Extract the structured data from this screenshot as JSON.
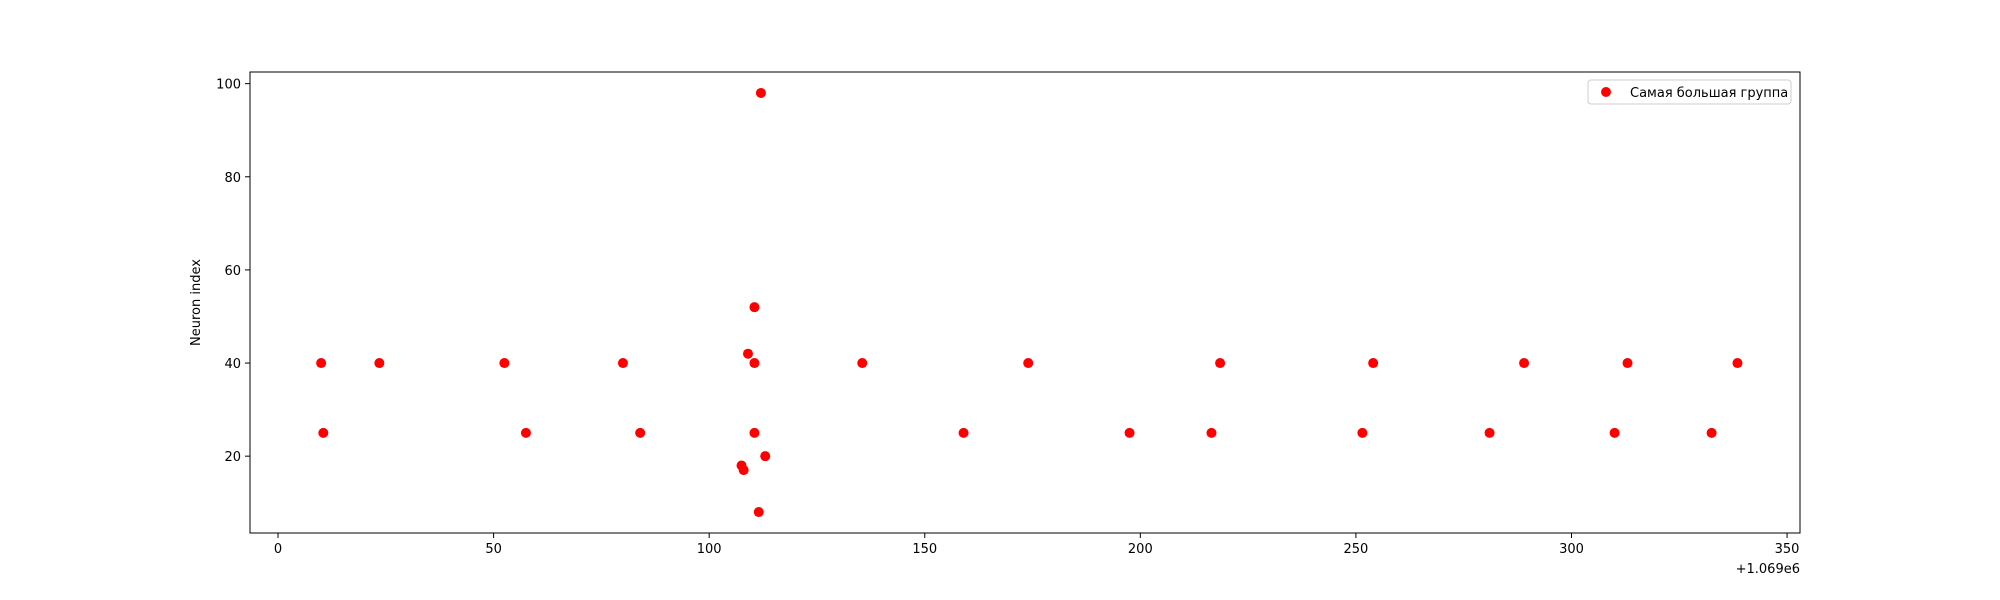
{
  "chart_data": {
    "type": "scatter",
    "title": "",
    "xlabel": "",
    "ylabel": "Neuron index",
    "x_offset_label": "+1.069e6",
    "xlim": [
      -6.5,
      353
    ],
    "ylim": [
      3.5,
      102.5
    ],
    "x_ticks": [
      0,
      50,
      100,
      150,
      200,
      250,
      300,
      350
    ],
    "y_ticks": [
      20,
      40,
      60,
      80,
      100
    ],
    "x_tick_labels": [
      "0",
      "50",
      "100",
      "150",
      "200",
      "250",
      "300",
      "350"
    ],
    "y_tick_labels": [
      "20",
      "40",
      "60",
      "80",
      "100"
    ],
    "grid": false,
    "legend_position": "top-right",
    "series": [
      {
        "name": "Самая большая группа",
        "color": "#ff0000",
        "points": [
          {
            "x": 10,
            "y": 40
          },
          {
            "x": 10.5,
            "y": 25
          },
          {
            "x": 23.5,
            "y": 40
          },
          {
            "x": 52.5,
            "y": 40
          },
          {
            "x": 57.5,
            "y": 25
          },
          {
            "x": 80,
            "y": 40
          },
          {
            "x": 84,
            "y": 25
          },
          {
            "x": 107.5,
            "y": 18
          },
          {
            "x": 108,
            "y": 17
          },
          {
            "x": 109,
            "y": 42
          },
          {
            "x": 110.5,
            "y": 52
          },
          {
            "x": 110.5,
            "y": 40
          },
          {
            "x": 110.5,
            "y": 25
          },
          {
            "x": 111.5,
            "y": 8
          },
          {
            "x": 112,
            "y": 98
          },
          {
            "x": 113,
            "y": 20
          },
          {
            "x": 135.5,
            "y": 40
          },
          {
            "x": 159,
            "y": 25
          },
          {
            "x": 174,
            "y": 40
          },
          {
            "x": 197.5,
            "y": 25
          },
          {
            "x": 216.5,
            "y": 25
          },
          {
            "x": 218.5,
            "y": 40
          },
          {
            "x": 251.5,
            "y": 25
          },
          {
            "x": 254,
            "y": 40
          },
          {
            "x": 281,
            "y": 25
          },
          {
            "x": 289,
            "y": 40
          },
          {
            "x": 310,
            "y": 25
          },
          {
            "x": 313,
            "y": 40
          },
          {
            "x": 332.5,
            "y": 25
          },
          {
            "x": 338.5,
            "y": 40
          }
        ]
      }
    ]
  }
}
